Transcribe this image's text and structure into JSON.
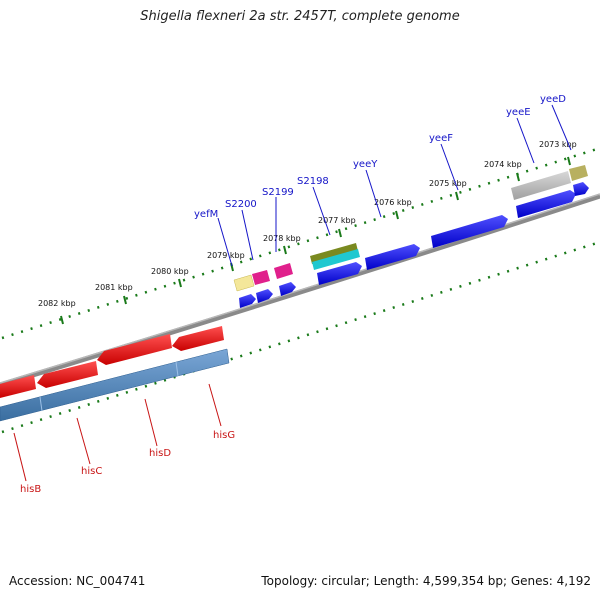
{
  "header": {
    "title": "Shigella flexneri 2a str. 2457T, complete genome"
  },
  "footer": {
    "accession": "Accession: NC_004741",
    "summary": "Topology: circular; Length: 4,599,354 bp; Genes: 4,192"
  },
  "scale": {
    "tick_labels": [
      "2082 kbp",
      "2081 kbp",
      "2080 kbp",
      "2079 kbp",
      "2078 kbp",
      "2077 kbp",
      "2076 kbp",
      "2075 kbp",
      "2074 kbp",
      "2073 kbp"
    ]
  },
  "genes_top": [
    "yefM",
    "S2200",
    "S2199",
    "S2198",
    "yeeY",
    "yeeF",
    "yeeE",
    "yeeD"
  ],
  "genes_bottom": [
    "hisB",
    "hisC",
    "hisD",
    "hisG"
  ],
  "colors": {
    "backbone": "#808080",
    "forward_cds": "#1010e0",
    "reverse_cds": "#e01010",
    "reverse_track": "#4a7fb5",
    "tick_mark": "#1a7a1a",
    "label_top": "#1515c8",
    "label_bottom": "#c81515"
  }
}
